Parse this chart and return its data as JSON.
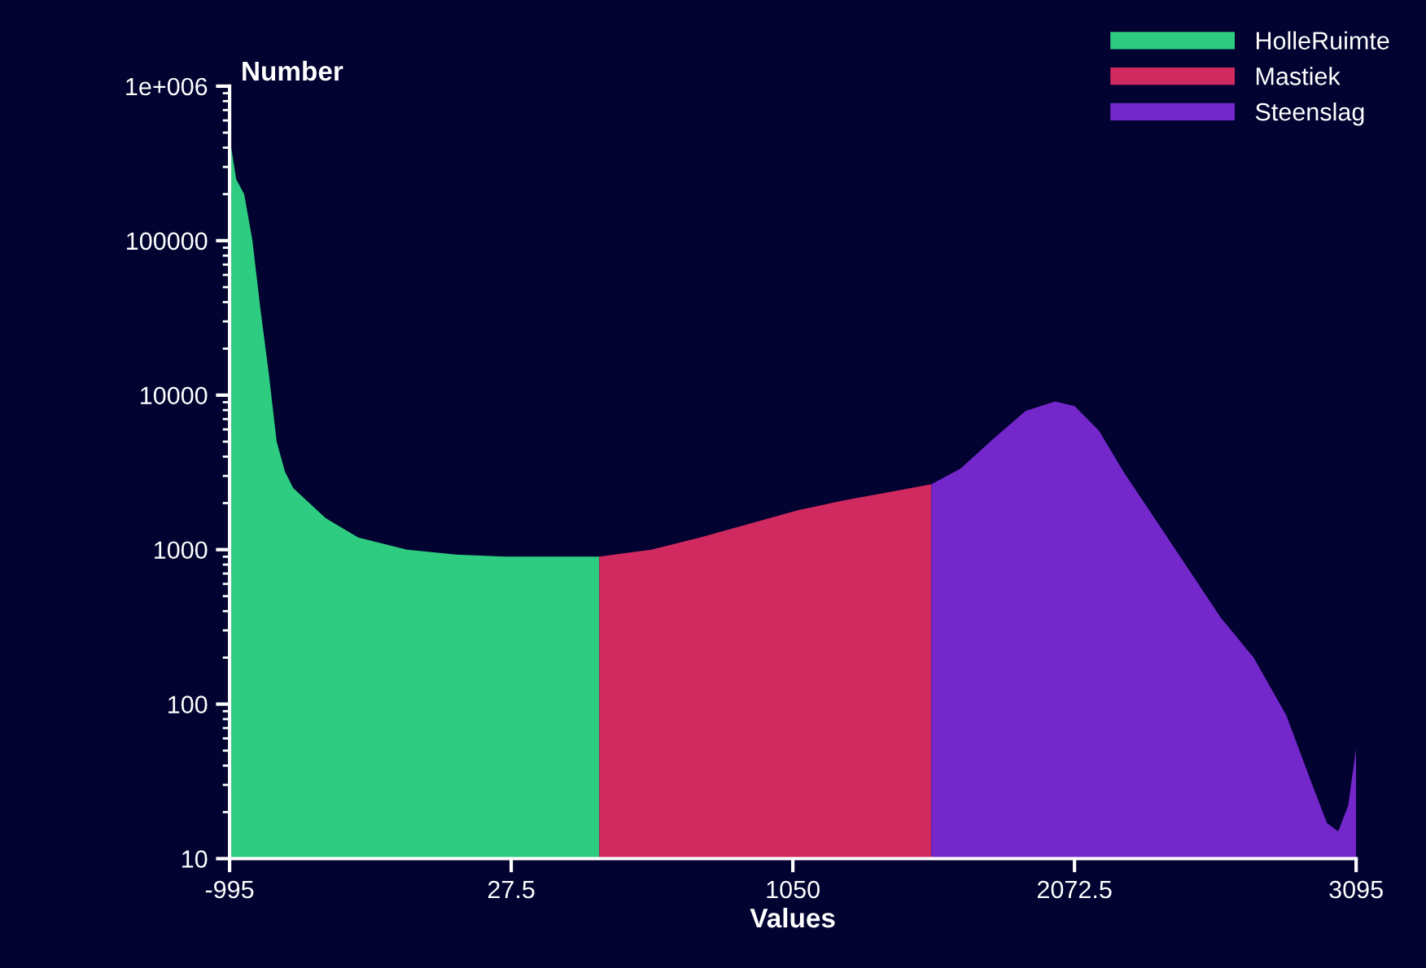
{
  "chart_data": {
    "type": "area",
    "xlabel": "Values",
    "ylabel": "Number",
    "log": "y",
    "legend": "top right",
    "grid": false,
    "xlim": [
      -995,
      3095
    ],
    "xticks": [
      -995,
      27.5,
      1050,
      2072.5,
      3095
    ],
    "ylim": [
      10,
      1000000
    ],
    "yticks": [
      10,
      100,
      1000,
      10000,
      100000,
      {
        "value": 1000000,
        "label": "1e+006"
      }
    ],
    "series": [
      {
        "name": "HolleRuimte",
        "color": "#2ecc80",
        "x": [
          -989,
          -971,
          -942,
          -912,
          -883,
          -853,
          -824,
          -794,
          -764,
          -705,
          -646,
          -528,
          -351,
          -173,
          4,
          181,
          347
        ],
        "values": [
          400000,
          250000,
          200000,
          100000,
          36000,
          14000,
          5000,
          3200,
          2500,
          2000,
          1600,
          1200,
          1000,
          930,
          900,
          900,
          900
        ]
      },
      {
        "name": "Mastiek",
        "color": "#d02a60",
        "x": [
          347,
          536,
          713,
          891,
          1068,
          1245,
          1423,
          1553
        ],
        "values": [
          900,
          1000,
          1200,
          1470,
          1800,
          2100,
          2400,
          2650
        ]
      },
      {
        "name": "Steenslag",
        "color": "#7428cc",
        "x": [
          1553,
          1659,
          1777,
          1895,
          2002,
          2073,
          2161,
          2250,
          2368,
          2486,
          2605,
          2723,
          2841,
          2930,
          2989,
          3030,
          3066,
          3095
        ],
        "values": [
          2650,
          3350,
          5200,
          7900,
          9100,
          8500,
          5900,
          3200,
          1550,
          750,
          360,
          200,
          85,
          32,
          17,
          15,
          22,
          52
        ]
      }
    ]
  }
}
